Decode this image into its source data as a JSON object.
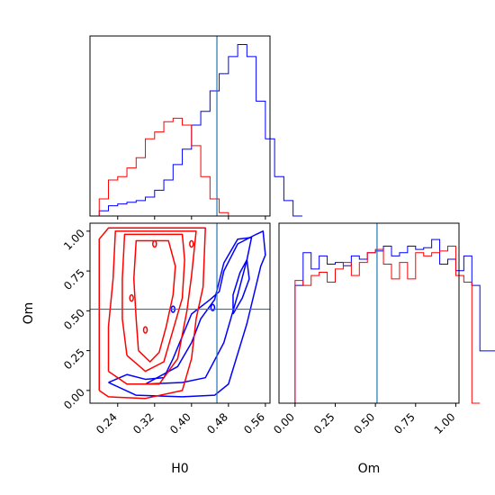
{
  "chart_data": {
    "type": "corner",
    "parameters": [
      "H0",
      "Om"
    ],
    "truth": {
      "H0": 0.455,
      "Om": 0.51
    },
    "colors": {
      "series_a": "#0000ff",
      "series_b": "#ff0000",
      "truth": "#1f77b4"
    },
    "grid": false,
    "legend": "none",
    "panels": [
      {
        "id": "H0-marginal",
        "type": "histogram",
        "xlim": [
          0.18,
          0.57
        ],
        "y_tick_labels": false,
        "x_tick_labels": false,
        "series": [
          {
            "color": "blue",
            "bin_start": 0.2,
            "bin_width": 0.02,
            "values": [
              0.03,
              0.06,
              0.07,
              0.08,
              0.09,
              0.11,
              0.15,
              0.21,
              0.3,
              0.39,
              0.53,
              0.61,
              0.73,
              0.83,
              0.93,
              1.0,
              0.93,
              0.67,
              0.45,
              0.23,
              0.09,
              0.0
            ]
          },
          {
            "color": "red",
            "bin_start": 0.2,
            "bin_width": 0.02,
            "values": [
              0.1,
              0.21,
              0.23,
              0.28,
              0.34,
              0.45,
              0.49,
              0.55,
              0.57,
              0.53,
              0.41,
              0.23,
              0.1,
              0.02,
              0.0,
              0.0
            ]
          }
        ]
      },
      {
        "id": "H0-Om-joint",
        "type": "contour",
        "xlabel": "H0",
        "ylabel": "Om",
        "xlim": [
          0.18,
          0.57
        ],
        "ylim": [
          -0.08,
          1.05
        ],
        "x_ticks": [
          "0.24",
          "0.32",
          "0.40",
          "0.48",
          "0.56"
        ],
        "y_ticks": [
          "0.00",
          "0.25",
          "0.50",
          "0.75",
          "1.00"
        ],
        "series": [
          {
            "color": "blue",
            "contours": [
              [
                [
                  0.22,
                  0.05
                ],
                [
                  0.28,
                  -0.03
                ],
                [
                  0.38,
                  -0.04
                ],
                [
                  0.45,
                  -0.03
                ],
                [
                  0.48,
                  0.04
                ],
                [
                  0.52,
                  0.42
                ],
                [
                  0.55,
                  0.78
                ],
                [
                  0.56,
                  0.85
                ],
                [
                  0.555,
                  1.0
                ],
                [
                  0.54,
                  0.98
                ],
                [
                  0.5,
                  0.92
                ],
                [
                  0.47,
                  0.75
                ],
                [
                  0.46,
                  0.62
                ],
                [
                  0.44,
                  0.57
                ],
                [
                  0.4,
                  0.48
                ],
                [
                  0.36,
                  0.2
                ],
                [
                  0.34,
                  0.08
                ],
                [
                  0.3,
                  0.07
                ],
                [
                  0.26,
                  0.1
                ],
                [
                  0.22,
                  0.05
                ]
              ],
              [
                [
                  0.3,
                  0.04
                ],
                [
                  0.38,
                  0.05
                ],
                [
                  0.43,
                  0.08
                ],
                [
                  0.47,
                  0.3
                ],
                [
                  0.5,
                  0.6
                ],
                [
                  0.52,
                  0.82
                ],
                [
                  0.53,
                  0.96
                ],
                [
                  0.5,
                  0.95
                ],
                [
                  0.47,
                  0.8
                ],
                [
                  0.45,
                  0.57
                ],
                [
                  0.42,
                  0.45
                ],
                [
                  0.4,
                  0.3
                ],
                [
                  0.37,
                  0.15
                ],
                [
                  0.3,
                  0.04
                ]
              ],
              [
                [
                  0.49,
                  0.48
                ],
                [
                  0.51,
                  0.58
                ],
                [
                  0.525,
                  0.7
                ],
                [
                  0.52,
                  0.82
                ],
                [
                  0.505,
                  0.74
                ],
                [
                  0.49,
                  0.6
                ],
                [
                  0.49,
                  0.48
                ]
              ]
            ],
            "marks": [
              [
                0.446,
                0.52
              ],
              [
                0.36,
                0.51
              ]
            ]
          },
          {
            "color": "red",
            "contours": [
              [
                [
                  0.2,
                  0.0
                ],
                [
                  0.22,
                  -0.04
                ],
                [
                  0.3,
                  -0.05
                ],
                [
                  0.38,
                  0.0
                ],
                [
                  0.4,
                  0.2
                ],
                [
                  0.41,
                  0.45
                ],
                [
                  0.425,
                  0.65
                ],
                [
                  0.43,
                  1.02
                ],
                [
                  0.22,
                  1.02
                ],
                [
                  0.2,
                  0.95
                ],
                [
                  0.2,
                  0.65
                ],
                [
                  0.2,
                  0.3
                ],
                [
                  0.2,
                  0.0
                ]
              ],
              [
                [
                  0.22,
                  0.12
                ],
                [
                  0.26,
                  0.04
                ],
                [
                  0.33,
                  0.04
                ],
                [
                  0.37,
                  0.2
                ],
                [
                  0.39,
                  0.5
                ],
                [
                  0.4,
                  0.72
                ],
                [
                  0.41,
                  1.0
                ],
                [
                  0.235,
                  1.0
                ],
                [
                  0.23,
                  0.7
                ],
                [
                  0.22,
                  0.4
                ],
                [
                  0.22,
                  0.12
                ]
              ],
              [
                [
                  0.26,
                  0.22
                ],
                [
                  0.3,
                  0.12
                ],
                [
                  0.34,
                  0.18
                ],
                [
                  0.36,
                  0.38
                ],
                [
                  0.38,
                  0.58
                ],
                [
                  0.385,
                  0.82
                ],
                [
                  0.38,
                  0.98
                ],
                [
                  0.255,
                  0.98
                ],
                [
                  0.25,
                  0.7
                ],
                [
                  0.25,
                  0.45
                ],
                [
                  0.26,
                  0.22
                ]
              ],
              [
                [
                  0.285,
                  0.25
                ],
                [
                  0.31,
                  0.18
                ],
                [
                  0.33,
                  0.24
                ],
                [
                  0.345,
                  0.4
                ],
                [
                  0.36,
                  0.6
                ],
                [
                  0.365,
                  0.78
                ],
                [
                  0.35,
                  0.94
                ],
                [
                  0.28,
                  0.94
                ],
                [
                  0.275,
                  0.7
                ],
                [
                  0.28,
                  0.45
                ],
                [
                  0.285,
                  0.25
                ]
              ]
            ],
            "marks": [
              [
                0.27,
                0.58
              ],
              [
                0.3,
                0.38
              ],
              [
                0.4,
                0.92
              ],
              [
                0.32,
                0.92
              ]
            ]
          }
        ],
        "truth_lines": {
          "x": 0.455,
          "y": 0.51
        }
      },
      {
        "id": "Om-marginal",
        "type": "histogram",
        "xlabel": "Om",
        "xlim": [
          -0.1,
          1.02
        ],
        "x_ticks": [
          "0.00",
          "0.25",
          "0.50",
          "0.75",
          "1.00"
        ],
        "y_tick_labels": false,
        "series": [
          {
            "color": "blue",
            "bin_start": -0.05,
            "bin_width": 0.05,
            "values": [
              0.0,
              0.72,
              0.92,
              0.82,
              0.9,
              0.85,
              0.86,
              0.84,
              0.9,
              0.88,
              0.92,
              0.93,
              0.96,
              0.9,
              0.92,
              0.96,
              0.94,
              0.95,
              1.0,
              0.85,
              0.88,
              0.81,
              0.9,
              0.72,
              0.32,
              0.32
            ]
          },
          {
            "color": "red",
            "bin_start": 0.0,
            "bin_width": 0.05,
            "values": [
              0.75,
              0.72,
              0.78,
              0.8,
              0.74,
              0.82,
              0.86,
              0.78,
              0.86,
              0.92,
              0.94,
              0.85,
              0.76,
              0.86,
              0.76,
              0.92,
              0.9,
              0.92,
              0.93,
              0.96,
              0.78,
              0.74,
              0.0
            ]
          }
        ]
      }
    ]
  }
}
